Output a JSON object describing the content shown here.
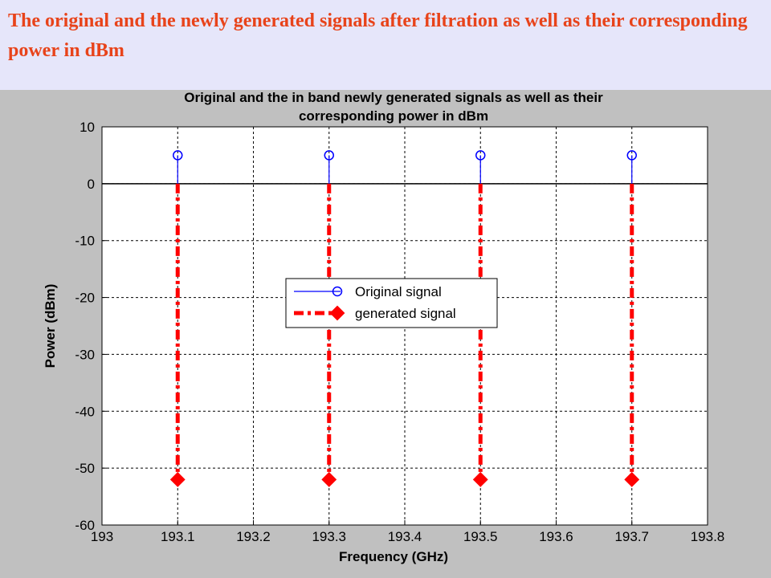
{
  "slide": {
    "title": "The original and the newly generated signals after filtration as well as their corresponding power in dBm"
  },
  "chart_data": {
    "type": "stem",
    "title_lines": [
      "Original and the in band newly generated signals as well as their",
      "corresponding power in dBm"
    ],
    "xlabel": "Frequency (GHz)",
    "ylabel": "Power (dBm)",
    "xlim": [
      193,
      193.8
    ],
    "ylim": [
      -60,
      10
    ],
    "xticks": [
      "193",
      "193.1",
      "193.2",
      "193.3",
      "193.4",
      "193.5",
      "193.6",
      "193.7",
      "193.8"
    ],
    "yticks": [
      "10",
      "0",
      "-10",
      "-20",
      "-30",
      "-40",
      "-50",
      "-60"
    ],
    "grid": true,
    "legend_position": "center",
    "baseline": 0,
    "series": [
      {
        "name": "Original signal",
        "color": "#0000ff",
        "marker": "circle",
        "line_style": "solid",
        "x": [
          193.1,
          193.3,
          193.5,
          193.7
        ],
        "y": [
          5,
          5,
          5,
          5
        ]
      },
      {
        "name": "generated signal",
        "color": "#ff0000",
        "marker": "diamond",
        "line_style": "dash-dot",
        "x": [
          193.1,
          193.3,
          193.5,
          193.7
        ],
        "y": [
          -52,
          -52,
          -52,
          -52
        ]
      }
    ]
  }
}
